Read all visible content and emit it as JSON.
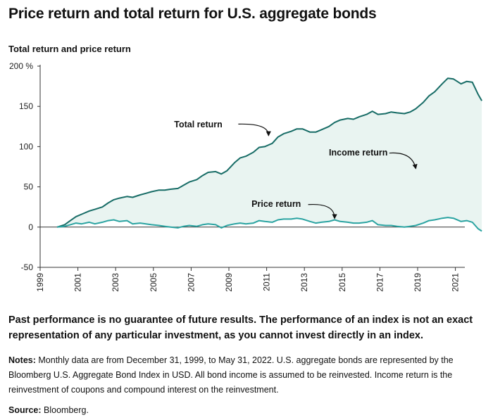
{
  "header": {
    "title": "Price return and total return for U.S. aggregate bonds"
  },
  "chart_data": {
    "type": "area",
    "subtitle": "Total return and price return",
    "x_ticks": [
      "1999",
      "2001",
      "2003",
      "2005",
      "2007",
      "2009",
      "2011",
      "2013",
      "2015",
      "2017",
      "2019",
      "2021"
    ],
    "y_ticks": [
      {
        "value": 200,
        "label": "200 %"
      },
      {
        "value": 150,
        "label": "150"
      },
      {
        "value": 100,
        "label": "100"
      },
      {
        "value": 50,
        "label": "50"
      },
      {
        "value": 0,
        "label": "0"
      },
      {
        "value": -50,
        "label": "-50"
      }
    ],
    "xlim": [
      1999.0,
      2021.5
    ],
    "ylim": [
      -50,
      200
    ],
    "grid": false,
    "legend": "none",
    "series": [
      {
        "name": "Total return",
        "color": "#176c66",
        "points": [
          [
            1999.9,
            0
          ],
          [
            2000.3,
            3
          ],
          [
            2000.6,
            8
          ],
          [
            2000.9,
            13
          ],
          [
            2001.2,
            16
          ],
          [
            2001.6,
            20
          ],
          [
            2001.9,
            22
          ],
          [
            2002.3,
            25
          ],
          [
            2002.6,
            30
          ],
          [
            2002.9,
            34
          ],
          [
            2003.2,
            36
          ],
          [
            2003.6,
            38
          ],
          [
            2003.9,
            37
          ],
          [
            2004.3,
            40
          ],
          [
            2004.6,
            42
          ],
          [
            2004.9,
            44
          ],
          [
            2005.3,
            46
          ],
          [
            2005.6,
            46
          ],
          [
            2005.9,
            47
          ],
          [
            2006.3,
            48
          ],
          [
            2006.6,
            52
          ],
          [
            2006.9,
            56
          ],
          [
            2007.3,
            59
          ],
          [
            2007.6,
            64
          ],
          [
            2007.9,
            68
          ],
          [
            2008.3,
            69
          ],
          [
            2008.6,
            66
          ],
          [
            2008.9,
            70
          ],
          [
            2009.3,
            80
          ],
          [
            2009.6,
            86
          ],
          [
            2009.9,
            88
          ],
          [
            2010.3,
            93
          ],
          [
            2010.6,
            99
          ],
          [
            2010.9,
            100
          ],
          [
            2011.3,
            104
          ],
          [
            2011.6,
            112
          ],
          [
            2011.9,
            116
          ],
          [
            2012.3,
            119
          ],
          [
            2012.6,
            122
          ],
          [
            2012.9,
            122
          ],
          [
            2013.3,
            118
          ],
          [
            2013.6,
            118
          ],
          [
            2013.9,
            121
          ],
          [
            2014.3,
            125
          ],
          [
            2014.6,
            130
          ],
          [
            2014.9,
            133
          ],
          [
            2015.3,
            135
          ],
          [
            2015.6,
            134
          ],
          [
            2015.9,
            137
          ],
          [
            2016.3,
            140
          ],
          [
            2016.6,
            144
          ],
          [
            2016.9,
            140
          ],
          [
            2017.3,
            141
          ],
          [
            2017.6,
            143
          ],
          [
            2017.9,
            142
          ],
          [
            2018.3,
            141
          ],
          [
            2018.6,
            143
          ],
          [
            2018.9,
            147
          ],
          [
            2019.3,
            155
          ],
          [
            2019.6,
            163
          ],
          [
            2019.9,
            168
          ],
          [
            2020.3,
            178
          ],
          [
            2020.6,
            185
          ],
          [
            2020.9,
            184
          ],
          [
            2021.3,
            178
          ],
          [
            2021.6,
            181
          ],
          [
            2021.9,
            180
          ],
          [
            2022.2,
            165
          ],
          [
            2022.4,
            157
          ]
        ]
      },
      {
        "name": "Price return",
        "color": "#2aa3a1",
        "points": [
          [
            1999.9,
            0
          ],
          [
            2000.3,
            1
          ],
          [
            2000.6,
            3
          ],
          [
            2000.9,
            5
          ],
          [
            2001.2,
            4
          ],
          [
            2001.6,
            6
          ],
          [
            2001.9,
            4
          ],
          [
            2002.3,
            6
          ],
          [
            2002.6,
            8
          ],
          [
            2002.9,
            9
          ],
          [
            2003.2,
            7
          ],
          [
            2003.6,
            8
          ],
          [
            2003.9,
            4
          ],
          [
            2004.3,
            5
          ],
          [
            2004.6,
            4
          ],
          [
            2004.9,
            3
          ],
          [
            2005.3,
            2
          ],
          [
            2005.6,
            1
          ],
          [
            2005.9,
            0
          ],
          [
            2006.3,
            -1
          ],
          [
            2006.6,
            1
          ],
          [
            2006.9,
            2
          ],
          [
            2007.3,
            1
          ],
          [
            2007.6,
            3
          ],
          [
            2007.9,
            4
          ],
          [
            2008.3,
            3
          ],
          [
            2008.6,
            -1
          ],
          [
            2008.9,
            2
          ],
          [
            2009.3,
            4
          ],
          [
            2009.6,
            5
          ],
          [
            2009.9,
            4
          ],
          [
            2010.3,
            5
          ],
          [
            2010.6,
            8
          ],
          [
            2010.9,
            7
          ],
          [
            2011.3,
            6
          ],
          [
            2011.6,
            9
          ],
          [
            2011.9,
            10
          ],
          [
            2012.3,
            10
          ],
          [
            2012.6,
            11
          ],
          [
            2012.9,
            10
          ],
          [
            2013.3,
            7
          ],
          [
            2013.6,
            5
          ],
          [
            2013.9,
            6
          ],
          [
            2014.3,
            7
          ],
          [
            2014.6,
            9
          ],
          [
            2014.9,
            7
          ],
          [
            2015.3,
            6
          ],
          [
            2015.6,
            5
          ],
          [
            2015.9,
            5
          ],
          [
            2016.3,
            6
          ],
          [
            2016.6,
            8
          ],
          [
            2016.9,
            3
          ],
          [
            2017.3,
            2
          ],
          [
            2017.6,
            2
          ],
          [
            2017.9,
            1
          ],
          [
            2018.3,
            0
          ],
          [
            2018.6,
            1
          ],
          [
            2018.9,
            2
          ],
          [
            2019.3,
            5
          ],
          [
            2019.6,
            8
          ],
          [
            2019.9,
            9
          ],
          [
            2020.3,
            11
          ],
          [
            2020.6,
            12
          ],
          [
            2020.9,
            11
          ],
          [
            2021.3,
            7
          ],
          [
            2021.6,
            8
          ],
          [
            2021.9,
            6
          ],
          [
            2022.2,
            -2
          ],
          [
            2022.4,
            -5
          ]
        ]
      }
    ],
    "area_label": "Income return",
    "area_color": "#e9f4f1",
    "annotations": [
      "Total return",
      "Income return",
      "Price return"
    ]
  },
  "footer": {
    "disclaimer": "Past performance is no guarantee of future results. The performance of an index is not an exact representation of any particular investment, as you cannot invest directly in an index.",
    "notes_label": "Notes:",
    "notes_text": "Monthly data are from December 31, 1999, to May 31, 2022. U.S. aggregate bonds are represented by the Bloomberg U.S. Aggregate Bond Index in USD. All bond income is assumed to be reinvested. Income return is the reinvestment of coupons and compound interest on the reinvestment.",
    "source_label": "Source:",
    "source_text": "Bloomberg."
  }
}
